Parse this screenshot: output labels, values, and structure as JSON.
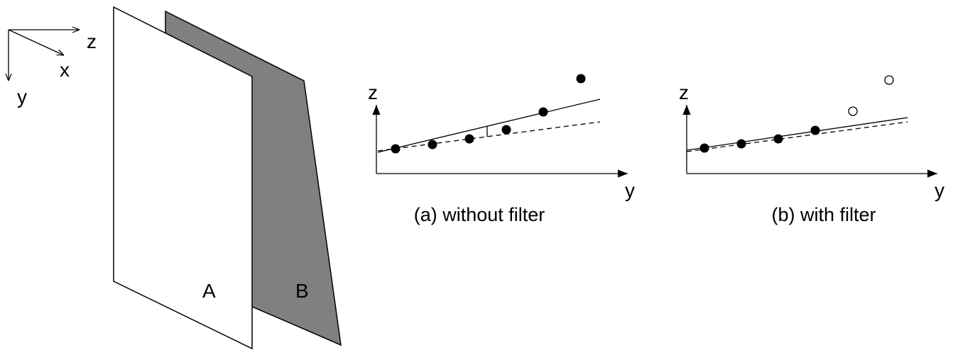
{
  "axes": {
    "z": "z",
    "x": "x",
    "y": "y"
  },
  "planes": [
    "A",
    "B"
  ],
  "panels": [
    {
      "vertical_axis": "z",
      "horizontal_axis": "y",
      "caption": "(a) without filter"
    },
    {
      "vertical_axis": "z",
      "horizontal_axis": "y",
      "caption": "(b) with filter"
    }
  ]
}
